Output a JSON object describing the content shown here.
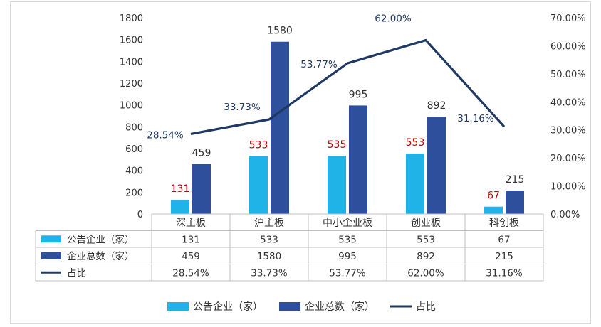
{
  "chart_data": {
    "type": "bar",
    "categories": [
      "深主板",
      "沪主板",
      "中小企业板",
      "创业板",
      "科创板"
    ],
    "series": [
      {
        "name": "公告企业（家）",
        "type": "bar",
        "axis": "left",
        "values": [
          131,
          533,
          535,
          553,
          67
        ],
        "labels": [
          "131",
          "533",
          "535",
          "553",
          "67"
        ],
        "color": "#1fb3e8",
        "label_color": "#c00000"
      },
      {
        "name": "企业总数（家）",
        "type": "bar",
        "axis": "left",
        "values": [
          459,
          1580,
          995,
          892,
          215
        ],
        "labels": [
          "459",
          "1580",
          "995",
          "892",
          "215"
        ],
        "color": "#2e4f9b",
        "label_color": "#333333"
      },
      {
        "name": "占比",
        "type": "line",
        "axis": "right",
        "values": [
          28.54,
          33.73,
          53.77,
          62.0,
          31.16
        ],
        "labels": [
          "28.54%",
          "33.73%",
          "53.77%",
          "62.00%",
          "31.16%"
        ],
        "color": "#1f3864",
        "label_color": "#1f3864"
      }
    ],
    "y_left": {
      "ylim": [
        0,
        1800
      ],
      "ticks": [
        "0",
        "200",
        "400",
        "600",
        "800",
        "1000",
        "1200",
        "1400",
        "1600",
        "1800"
      ]
    },
    "y_right": {
      "ylim": [
        0,
        70
      ],
      "ticks": [
        "0.00%",
        "10.00%",
        "20.00%",
        "30.00%",
        "40.00%",
        "50.00%",
        "60.00%",
        "70.00%"
      ]
    },
    "data_table": {
      "rows": [
        {
          "name": "公告企业（家）",
          "cells": [
            "131",
            "533",
            "535",
            "553",
            "67"
          ]
        },
        {
          "name": "企业总数（家）",
          "cells": [
            "459",
            "1580",
            "995",
            "892",
            "215"
          ]
        },
        {
          "name": "占比",
          "cells": [
            "28.54%",
            "33.73%",
            "53.77%",
            "62.00%",
            "31.16%"
          ]
        }
      ]
    },
    "legend": {
      "position": "bottom",
      "items": [
        "公告企业（家）",
        "企业总数（家）",
        "占比"
      ]
    },
    "grid": false
  }
}
